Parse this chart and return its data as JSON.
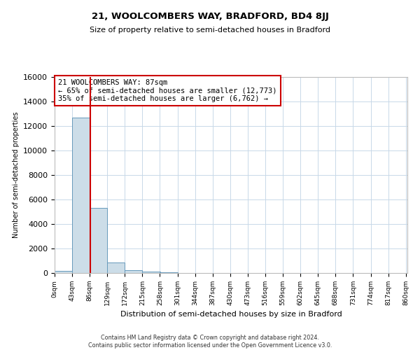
{
  "title": "21, WOOLCOMBERS WAY, BRADFORD, BD4 8JJ",
  "subtitle": "Size of property relative to semi-detached houses in Bradford",
  "xlabel": "Distribution of semi-detached houses by size in Bradford",
  "ylabel": "Number of semi-detached properties",
  "footnote1": "Contains HM Land Registry data © Crown copyright and database right 2024.",
  "footnote2": "Contains public sector information licensed under the Open Government Licence v3.0.",
  "annotation_line1": "21 WOOLCOMBERS WAY: 87sqm",
  "annotation_line2": "← 65% of semi-detached houses are smaller (12,773)",
  "annotation_line3": "35% of semi-detached houses are larger (6,762) →",
  "property_size": 87,
  "bin_width": 43,
  "bin_edges": [
    0,
    43,
    86,
    129,
    172,
    215,
    258,
    301,
    344,
    387,
    430,
    473,
    516,
    559,
    602,
    645,
    688,
    731,
    774,
    817,
    860
  ],
  "bin_counts": [
    200,
    12700,
    5300,
    850,
    250,
    120,
    50,
    15,
    8,
    4,
    2,
    1,
    1,
    0,
    0,
    0,
    0,
    0,
    0,
    0
  ],
  "bar_color": "#ccdde8",
  "bar_edge_color": "#6699bb",
  "red_line_color": "#cc0000",
  "annotation_box_color": "#cc0000",
  "grid_color": "#c8d8e8",
  "background_color": "#ffffff",
  "ylim": [
    0,
    16000
  ],
  "yticks": [
    0,
    2000,
    4000,
    6000,
    8000,
    10000,
    12000,
    14000,
    16000
  ]
}
